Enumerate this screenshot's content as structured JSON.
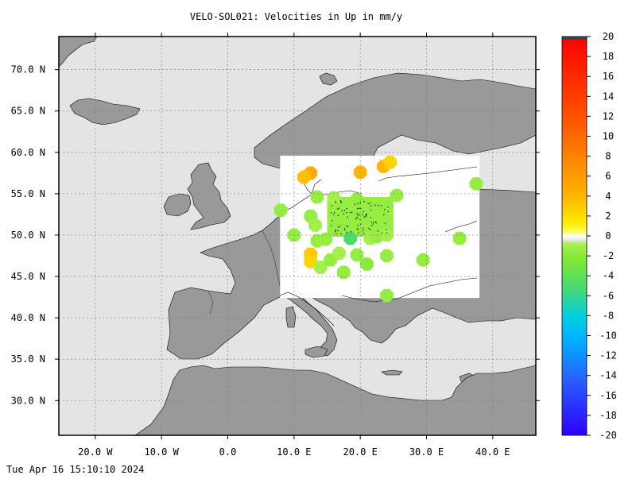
{
  "title": "VELO-SOL021: Velocities in Up in mm/y",
  "timestamp": "Tue Apr 16 15:10:10 2024",
  "colors": {
    "sea": "#e4e4e4",
    "land": "#999999",
    "coast": "#000000",
    "grid": "#777777",
    "region": "#ffffff"
  },
  "map": {
    "lon_range": [
      -25.5,
      46.5
    ],
    "lat_range": [
      25.8,
      74.0
    ],
    "lon_ticks": [
      {
        "v": -20,
        "label": "20.0 W"
      },
      {
        "v": -10,
        "label": "10.0 W"
      },
      {
        "v": 0,
        "label": "0.0"
      },
      {
        "v": 10,
        "label": "10.0 E"
      },
      {
        "v": 20,
        "label": "20.0 E"
      },
      {
        "v": 30,
        "label": "30.0 E"
      },
      {
        "v": 40,
        "label": "40.0 E"
      }
    ],
    "lat_ticks": [
      {
        "v": 30,
        "label": "30.0 N"
      },
      {
        "v": 35,
        "label": "35.0 N"
      },
      {
        "v": 40,
        "label": "40.0 N"
      },
      {
        "v": 45,
        "label": "45.0 N"
      },
      {
        "v": 50,
        "label": "50.0 N"
      },
      {
        "v": 55,
        "label": "55.0 N"
      },
      {
        "v": 60,
        "label": "60.0 N"
      },
      {
        "v": 65,
        "label": "65.0 N"
      },
      {
        "v": 70,
        "label": "70.0 N"
      }
    ],
    "data_region": {
      "lon": [
        7.9,
        38.0
      ],
      "lat": [
        42.4,
        59.6
      ]
    }
  },
  "colorbar": {
    "min": -20,
    "max": 20,
    "ticks": [
      {
        "v": 20,
        "label": "20"
      },
      {
        "v": 18,
        "label": "18"
      },
      {
        "v": 16,
        "label": "16"
      },
      {
        "v": 14,
        "label": "14"
      },
      {
        "v": 12,
        "label": "12"
      },
      {
        "v": 10,
        "label": "10"
      },
      {
        "v": 8,
        "label": "8"
      },
      {
        "v": 6,
        "label": "6"
      },
      {
        "v": 4,
        "label": "4"
      },
      {
        "v": 2,
        "label": "2"
      },
      {
        "v": 0,
        "label": "0"
      },
      {
        "v": -2,
        "label": "-2"
      },
      {
        "v": -4,
        "label": "-4"
      },
      {
        "v": -6,
        "label": "-6"
      },
      {
        "v": -8,
        "label": "-8"
      },
      {
        "v": -10,
        "label": "-10"
      },
      {
        "v": -12,
        "label": "-12"
      },
      {
        "v": -14,
        "label": "-14"
      },
      {
        "v": -16,
        "label": "-16"
      },
      {
        "v": -18,
        "label": "-18"
      },
      {
        "v": -20,
        "label": "-20"
      }
    ]
  },
  "blobs": [
    {
      "lon": 12.5,
      "lat": 57.5,
      "v": 4.5
    },
    {
      "lon": 11.5,
      "lat": 57.0,
      "v": 3.5
    },
    {
      "lon": 20.0,
      "lat": 57.6,
      "v": 4.0
    },
    {
      "lon": 23.5,
      "lat": 58.3,
      "v": 4.0
    },
    {
      "lon": 24.5,
      "lat": 58.8,
      "v": 2.5
    },
    {
      "lon": 25.5,
      "lat": 54.8,
      "v": -1.5
    },
    {
      "lon": 37.5,
      "lat": 56.2,
      "v": -1.5
    },
    {
      "lon": 13.5,
      "lat": 54.6,
      "v": -1.5
    },
    {
      "lon": 16.0,
      "lat": 54.5,
      "v": -1.0
    },
    {
      "lon": 19.5,
      "lat": 54.3,
      "v": -1.5
    },
    {
      "lon": 8.0,
      "lat": 53.0,
      "v": -1.5
    },
    {
      "lon": 12.5,
      "lat": 52.3,
      "v": -1.5
    },
    {
      "lon": 13.2,
      "lat": 51.2,
      "v": -1.0
    },
    {
      "lon": 10.0,
      "lat": 50.0,
      "v": -1.5
    },
    {
      "lon": 13.5,
      "lat": 49.3,
      "v": -1.5
    },
    {
      "lon": 14.8,
      "lat": 49.5,
      "v": -1.5
    },
    {
      "lon": 12.5,
      "lat": 47.7,
      "v": 3.0
    },
    {
      "lon": 12.5,
      "lat": 46.8,
      "v": 2.5
    },
    {
      "lon": 14.0,
      "lat": 46.1,
      "v": -1.0
    },
    {
      "lon": 15.5,
      "lat": 47.0,
      "v": -1.5
    },
    {
      "lon": 16.8,
      "lat": 47.8,
      "v": -1.0
    },
    {
      "lon": 17.5,
      "lat": 45.5,
      "v": -1.5
    },
    {
      "lon": 19.5,
      "lat": 47.6,
      "v": -1.5
    },
    {
      "lon": 21.0,
      "lat": 46.5,
      "v": -2.0
    },
    {
      "lon": 24.0,
      "lat": 47.5,
      "v": -1.5
    },
    {
      "lon": 29.5,
      "lat": 47.0,
      "v": -1.5
    },
    {
      "lon": 35.0,
      "lat": 49.6,
      "v": -1.5
    },
    {
      "lon": 24.0,
      "lat": 42.7,
      "v": -1.5
    },
    {
      "lon": 18.5,
      "lat": 49.6,
      "v": -5.0
    },
    {
      "lon": 21.5,
      "lat": 49.6,
      "v": -1.0
    },
    {
      "lon": 22.5,
      "lat": 49.8,
      "v": -1.5
    },
    {
      "lon": 24.0,
      "lat": 50.0,
      "v": -1.0
    }
  ],
  "cluster": {
    "lon": [
      15.0,
      25.0
    ],
    "lat": [
      49.8,
      54.6
    ],
    "v": -1.5,
    "dot_count": 90
  }
}
